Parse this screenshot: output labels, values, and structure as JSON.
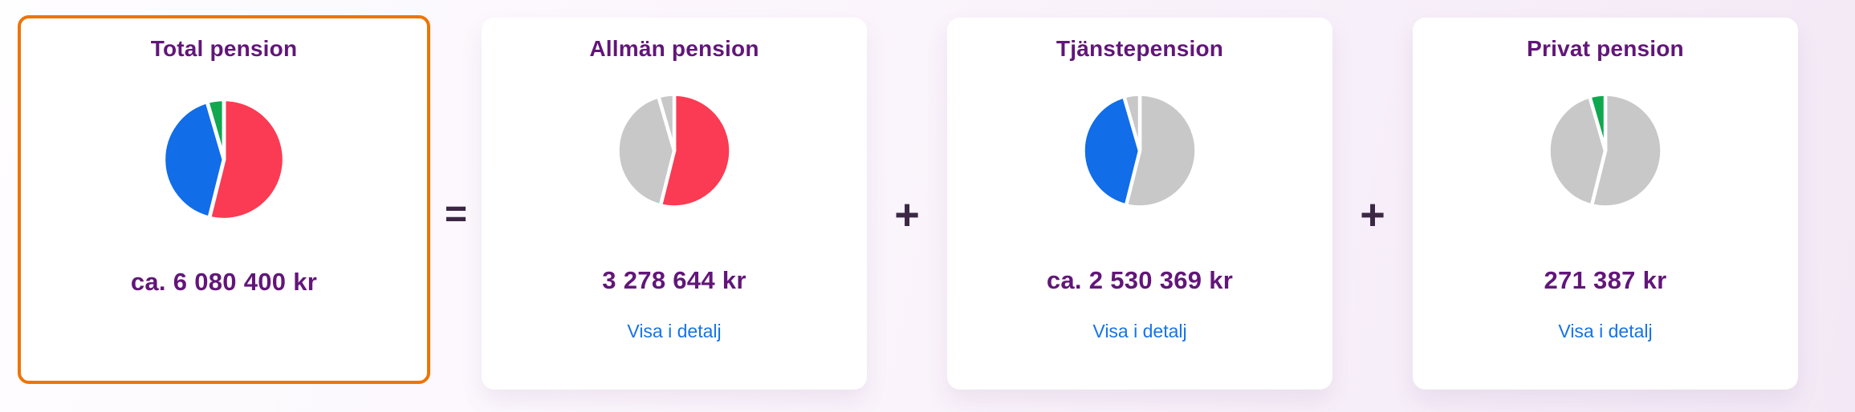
{
  "palette": {
    "slice_red": "#FB3B53",
    "slice_blue": "#116DE8",
    "slice_green": "#0FA84F",
    "slice_gray": "#C8C8C8",
    "heading_purple": "#621679",
    "operator_dark": "#3C2845",
    "link_blue": "#1673E8",
    "selected_border_orange": "#EE7405",
    "card_background": "#FFFFFF"
  },
  "operators": {
    "equals": "=",
    "plus": "+"
  },
  "cards": [
    {
      "title": "Total pension",
      "amount": "ca. 6 080 400 kr",
      "selected": true,
      "pie": {
        "slices": [
          {
            "label": "Allmän pension",
            "pct": 53.9,
            "color": "slice_red"
          },
          {
            "label": "Tjänstepension",
            "pct": 41.6,
            "color": "slice_blue"
          },
          {
            "label": "Privat pension",
            "pct": 4.5,
            "color": "slice_green"
          }
        ]
      }
    },
    {
      "title": "Allmän pension",
      "amount": "3 278 644 kr",
      "link": "Visa i detalj",
      "selected": false,
      "pie": {
        "slices": [
          {
            "label": "Allmän pension",
            "pct": 53.9,
            "color": "slice_red"
          },
          {
            "label": "Tjänstepension",
            "pct": 41.6,
            "color": "slice_gray"
          },
          {
            "label": "Privat pension",
            "pct": 4.5,
            "color": "slice_gray"
          }
        ]
      }
    },
    {
      "title": "Tjänstepension",
      "amount": "ca. 2 530 369 kr",
      "link": "Visa i detalj",
      "selected": false,
      "pie": {
        "slices": [
          {
            "label": "Allmän pension",
            "pct": 53.9,
            "color": "slice_gray"
          },
          {
            "label": "Tjänstepension",
            "pct": 41.6,
            "color": "slice_blue"
          },
          {
            "label": "Privat pension",
            "pct": 4.5,
            "color": "slice_gray"
          }
        ]
      }
    },
    {
      "title": "Privat pension",
      "amount": "271 387 kr",
      "link": "Visa i detalj",
      "selected": false,
      "pie": {
        "slices": [
          {
            "label": "Allmän pension",
            "pct": 53.9,
            "color": "slice_gray"
          },
          {
            "label": "Tjänstepension",
            "pct": 41.6,
            "color": "slice_gray"
          },
          {
            "label": "Privat pension",
            "pct": 4.5,
            "color": "slice_green"
          }
        ]
      }
    }
  ],
  "chart_data": [
    {
      "type": "pie",
      "title": "Total pension",
      "labels": [
        "Allmän pension",
        "Tjänstepension",
        "Privat pension"
      ],
      "values": [
        3278644,
        2530369,
        271387
      ],
      "unit": "kr",
      "displayed_total": "ca. 6 080 400 kr",
      "colors": [
        "#FB3B53",
        "#116DE8",
        "#0FA84F"
      ],
      "start_angle_deg": 0,
      "direction": "clockwise",
      "legend": false
    },
    {
      "type": "pie",
      "title": "Allmän pension",
      "labels": [
        "Allmän pension",
        "Tjänstepension",
        "Privat pension"
      ],
      "values": [
        3278644,
        2530369,
        271387
      ],
      "unit": "kr",
      "highlighted_segment": "Allmän pension",
      "displayed_amount": "3 278 644 kr",
      "colors": [
        "#FB3B53",
        "#C8C8C8",
        "#C8C8C8"
      ],
      "start_angle_deg": 0,
      "direction": "clockwise",
      "legend": false
    },
    {
      "type": "pie",
      "title": "Tjänstepension",
      "labels": [
        "Allmän pension",
        "Tjänstepension",
        "Privat pension"
      ],
      "values": [
        3278644,
        2530369,
        271387
      ],
      "unit": "kr",
      "highlighted_segment": "Tjänstepension",
      "displayed_amount": "ca. 2 530 369 kr",
      "colors": [
        "#C8C8C8",
        "#116DE8",
        "#C8C8C8"
      ],
      "start_angle_deg": 0,
      "direction": "clockwise",
      "legend": false
    },
    {
      "type": "pie",
      "title": "Privat pension",
      "labels": [
        "Allmän pension",
        "Tjänstepension",
        "Privat pension"
      ],
      "values": [
        3278644,
        2530369,
        271387
      ],
      "unit": "kr",
      "highlighted_segment": "Privat pension",
      "displayed_amount": "271 387 kr",
      "colors": [
        "#C8C8C8",
        "#C8C8C8",
        "#0FA84F"
      ],
      "start_angle_deg": 0,
      "direction": "clockwise",
      "legend": false
    }
  ]
}
